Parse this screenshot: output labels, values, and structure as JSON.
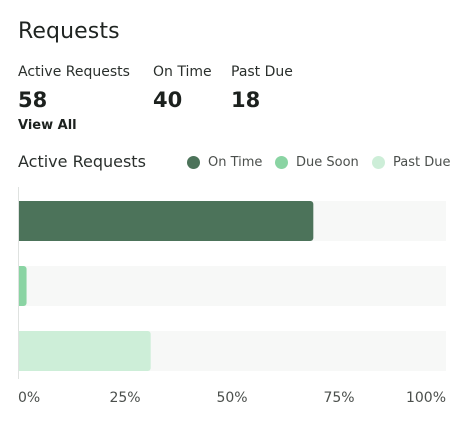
{
  "header": {
    "title": "Requests"
  },
  "stats": [
    {
      "label": "Active Requests",
      "value": "58"
    },
    {
      "label": "On Time",
      "value": "40"
    },
    {
      "label": "Past Due",
      "value": "18"
    }
  ],
  "view_all_label": "View All",
  "colors": {
    "on_time": "#4c735a",
    "due_soon": "#8ad4a3",
    "past_due": "#cdeed8",
    "track": "#f7f8f7"
  },
  "chart_data": {
    "type": "bar",
    "orientation": "horizontal",
    "title": "Active Requests",
    "categories": [
      "On Time",
      "Due Soon",
      "Past Due"
    ],
    "values": [
      69,
      2,
      31
    ],
    "unit": "%",
    "xlim": [
      0,
      100
    ],
    "x_ticks": [
      "0%",
      "25%",
      "50%",
      "75%",
      "100%"
    ],
    "x_tick_values": [
      0,
      25,
      50,
      75,
      100
    ],
    "legend": {
      "position": "top-right",
      "entries": [
        "On Time",
        "Due Soon",
        "Past Due"
      ]
    },
    "grid": false
  }
}
